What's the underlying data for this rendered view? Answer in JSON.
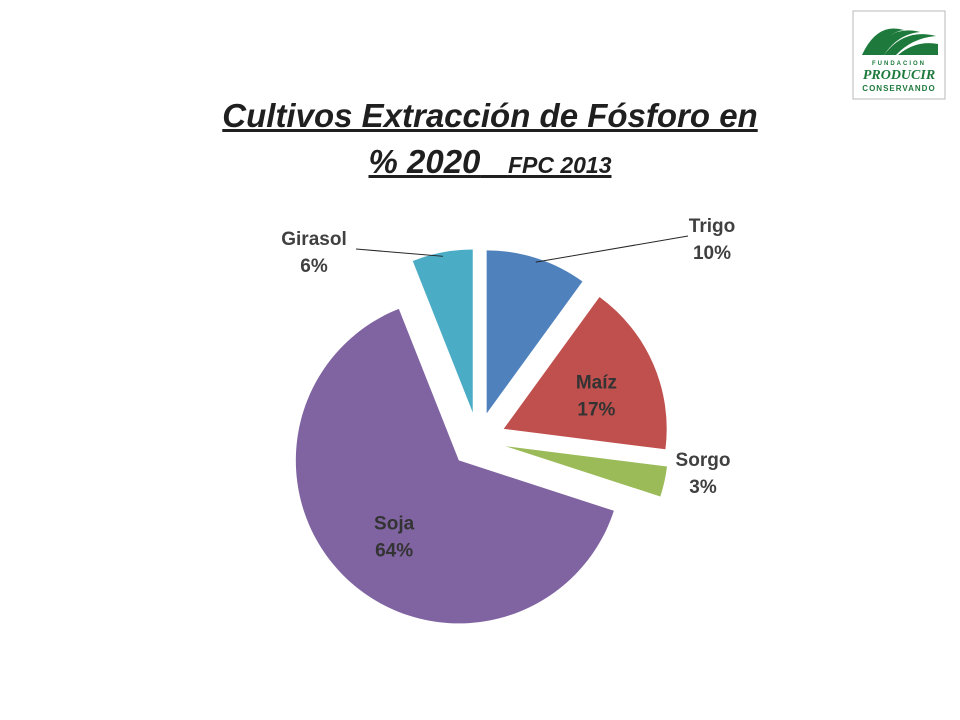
{
  "title": {
    "line1": "Cultivos  Extracción de Fósforo  en",
    "line2": "% 2020",
    "subtitle": "FPC 2013"
  },
  "logo": {
    "line1": "FUNDACION",
    "line2": "PRODUCIR",
    "line3": "CONSERVANDO",
    "color": "#1e7a3c"
  },
  "chart_data": {
    "type": "pie",
    "exploded": true,
    "slices": [
      {
        "label": "Trigo",
        "value": 10,
        "display": "10%",
        "color": "#4f81bd"
      },
      {
        "label": "Maíz",
        "value": 17,
        "display": "17%",
        "color": "#c0504d"
      },
      {
        "label": "Sorgo",
        "value": 3,
        "display": "3%",
        "color": "#9bbb59"
      },
      {
        "label": "Soja",
        "value": 64,
        "display": "64%",
        "color": "#8064a2"
      },
      {
        "label": "Girasol",
        "value": 6,
        "display": "6%",
        "color": "#4bacc6"
      }
    ]
  }
}
